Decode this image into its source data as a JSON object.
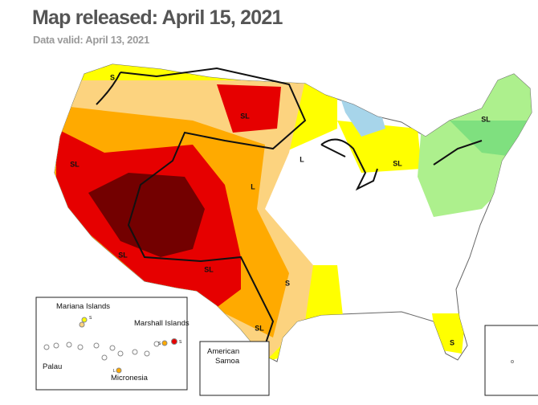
{
  "header": {
    "title": "Map released: April 15, 2021",
    "subtitle": "Data valid: April 13, 2021"
  },
  "map_labels": [
    "S",
    "SL",
    "SL",
    "L",
    "L",
    "SL",
    "SL",
    "SL",
    "SL",
    "S",
    "SL",
    "S"
  ],
  "insets": {
    "pacific": {
      "labels": [
        "Mariana Islands",
        "Marshall Islands",
        "Palau",
        "Micronesia"
      ],
      "small_labels": [
        "S",
        "S",
        "S",
        "L"
      ]
    },
    "samoa": {
      "label": "American Samoa"
    }
  }
}
